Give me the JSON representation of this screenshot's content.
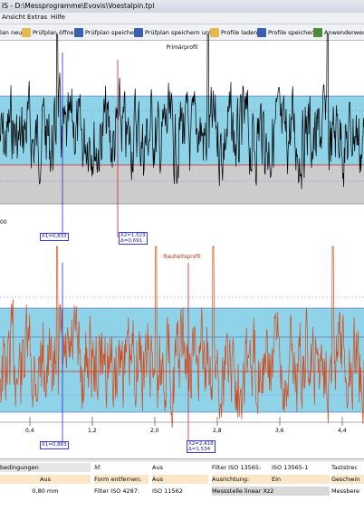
{
  "window": {
    "title": "IS - D:\\Messprogramme\\Evovis\\Voestalpin.tpl"
  },
  "menu": [
    "Ansicht",
    "Extras",
    "Hilfe"
  ],
  "toolbar": [
    {
      "label": "lan neu",
      "icon": "new-plan-icon",
      "color": "#e0a020"
    },
    {
      "label": "Prüfplan öffnen",
      "icon": "open-folder-icon",
      "color": "#e8b84a"
    },
    {
      "label": "Prüfplan speichern",
      "icon": "save-disk-icon",
      "color": "#3a5fb0"
    },
    {
      "label": "Prüfplan speichern unter",
      "icon": "save-as-icon",
      "color": "#3a5fb0"
    },
    {
      "label": "Profile laden",
      "icon": "open-folder-icon",
      "color": "#e8b84a"
    },
    {
      "label": "Profile speichern",
      "icon": "save-disk-icon",
      "color": "#3a5fb0"
    },
    {
      "label": "Anwenderwech",
      "icon": "user-switch-icon",
      "color": "#4a8a3a"
    }
  ],
  "primary": {
    "title": "Primärprofil",
    "left_tick": "00",
    "cursor1": "X1=0,833",
    "cursor2": "X2=1,523",
    "delta": "Δ=0,691",
    "colors": {
      "band": "#8fd3e8",
      "below": "#cccccc",
      "line": "#000000",
      "cursor": "#d42020",
      "guide": "#2b2bc8",
      "peak": "#e6c200"
    }
  },
  "roughness": {
    "title": "Rauheitsprofil",
    "cursor1": "X1=0,883",
    "cursor2": "X2=2,418",
    "delta": "Δ=1,534",
    "x_ticks": [
      "0,4",
      "1,2",
      "2,0",
      "2,8",
      "3,6",
      "4,4"
    ],
    "colors": {
      "band": "#8fd3e8",
      "line": "#d44a1a",
      "cursor": "#d42020",
      "guide": "#2b2bc8",
      "peak": "#e6c200"
    }
  },
  "settings": {
    "row1": [
      "bedingungen",
      "λf:",
      "",
      "Filter ISO 13565:",
      "ISO 13565-1",
      "Taststrec"
    ],
    "row2": [
      "Aus",
      "Form entfernen:",
      "Aus",
      "Ausrichtung:",
      "Ein",
      "Geschwin"
    ],
    "row3": [
      "0,80 mm",
      "Filter ISO 4287:",
      "ISO 11562",
      "Messstelle linear Xz2",
      "",
      "Messbere"
    ],
    "row1_extra": "Aus"
  }
}
